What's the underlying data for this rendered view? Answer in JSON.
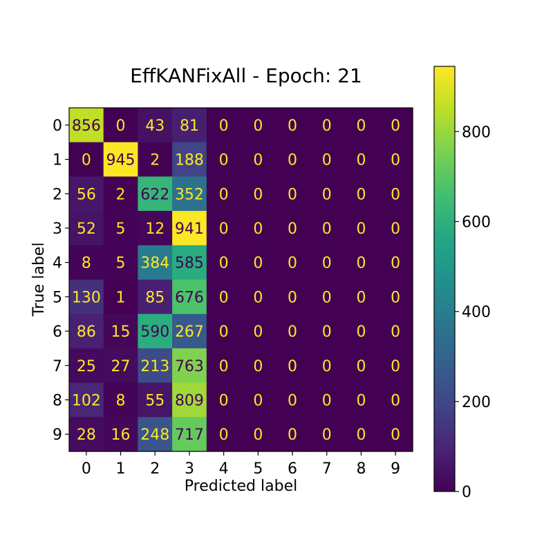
{
  "chart_data": {
    "type": "heatmap",
    "title": "EffKANFixAll - Epoch: 21",
    "xlabel": "Predicted label",
    "ylabel": "True label",
    "x_categories": [
      "0",
      "1",
      "2",
      "3",
      "4",
      "5",
      "6",
      "7",
      "8",
      "9"
    ],
    "y_categories": [
      "0",
      "1",
      "2",
      "3",
      "4",
      "5",
      "6",
      "7",
      "8",
      "9"
    ],
    "values": [
      [
        856,
        0,
        43,
        81,
        0,
        0,
        0,
        0,
        0,
        0
      ],
      [
        0,
        945,
        2,
        188,
        0,
        0,
        0,
        0,
        0,
        0
      ],
      [
        56,
        2,
        622,
        352,
        0,
        0,
        0,
        0,
        0,
        0
      ],
      [
        52,
        5,
        12,
        941,
        0,
        0,
        0,
        0,
        0,
        0
      ],
      [
        8,
        5,
        384,
        585,
        0,
        0,
        0,
        0,
        0,
        0
      ],
      [
        130,
        1,
        85,
        676,
        0,
        0,
        0,
        0,
        0,
        0
      ],
      [
        86,
        15,
        590,
        267,
        0,
        0,
        0,
        0,
        0,
        0
      ],
      [
        25,
        27,
        213,
        763,
        0,
        0,
        0,
        0,
        0,
        0
      ],
      [
        102,
        8,
        55,
        809,
        0,
        0,
        0,
        0,
        0,
        0
      ],
      [
        28,
        16,
        248,
        717,
        0,
        0,
        0,
        0,
        0,
        0
      ]
    ],
    "colormap": "viridis",
    "colorbar": {
      "range": [
        0,
        945
      ],
      "ticks": [
        0,
        200,
        400,
        600,
        800
      ]
    },
    "cell_text_colors": {
      "on_dark": "#fde725",
      "on_light": "#440154"
    }
  }
}
